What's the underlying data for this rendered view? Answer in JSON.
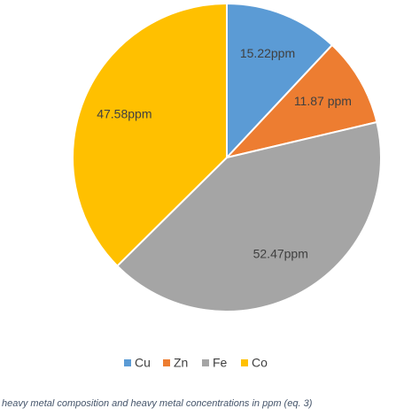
{
  "chart_data": {
    "type": "pie",
    "categories": [
      "Cu",
      "Zn",
      "Fe",
      "Co"
    ],
    "values": [
      15.22,
      11.87,
      52.47,
      47.58
    ],
    "value_labels": [
      "15.22ppm",
      "11.87 ppm",
      "52.47ppm",
      "47.58ppm"
    ],
    "colors": [
      "#5b9bd5",
      "#ed7d31",
      "#a5a5a5",
      "#ffc000"
    ],
    "legend": "bottom",
    "caption": "heavy metal composition and heavy metal concentrations in ppm (eq. 3)"
  }
}
